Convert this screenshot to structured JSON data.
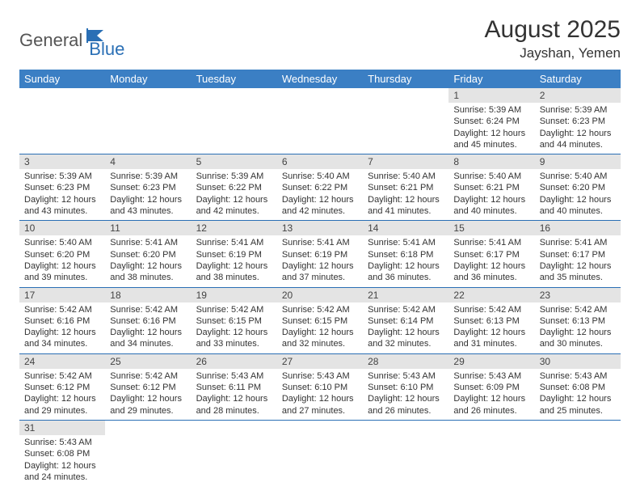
{
  "logo": {
    "general": "General",
    "blue": "Blue"
  },
  "title": "August 2025",
  "location": "Jayshan, Yemen",
  "colors": {
    "header_bg": "#3b7fc4",
    "header_text": "#ffffff",
    "row_divider": "#2a6fb5",
    "daynum_bg": "#e4e4e4",
    "logo_blue": "#2a6fb5",
    "logo_gray": "#555555"
  },
  "weekdays": [
    "Sunday",
    "Monday",
    "Tuesday",
    "Wednesday",
    "Thursday",
    "Friday",
    "Saturday"
  ],
  "weeks": [
    [
      null,
      null,
      null,
      null,
      null,
      {
        "d": "1",
        "sr": "Sunrise: 5:39 AM",
        "ss": "Sunset: 6:24 PM",
        "dl1": "Daylight: 12 hours",
        "dl2": "and 45 minutes."
      },
      {
        "d": "2",
        "sr": "Sunrise: 5:39 AM",
        "ss": "Sunset: 6:23 PM",
        "dl1": "Daylight: 12 hours",
        "dl2": "and 44 minutes."
      }
    ],
    [
      {
        "d": "3",
        "sr": "Sunrise: 5:39 AM",
        "ss": "Sunset: 6:23 PM",
        "dl1": "Daylight: 12 hours",
        "dl2": "and 43 minutes."
      },
      {
        "d": "4",
        "sr": "Sunrise: 5:39 AM",
        "ss": "Sunset: 6:23 PM",
        "dl1": "Daylight: 12 hours",
        "dl2": "and 43 minutes."
      },
      {
        "d": "5",
        "sr": "Sunrise: 5:39 AM",
        "ss": "Sunset: 6:22 PM",
        "dl1": "Daylight: 12 hours",
        "dl2": "and 42 minutes."
      },
      {
        "d": "6",
        "sr": "Sunrise: 5:40 AM",
        "ss": "Sunset: 6:22 PM",
        "dl1": "Daylight: 12 hours",
        "dl2": "and 42 minutes."
      },
      {
        "d": "7",
        "sr": "Sunrise: 5:40 AM",
        "ss": "Sunset: 6:21 PM",
        "dl1": "Daylight: 12 hours",
        "dl2": "and 41 minutes."
      },
      {
        "d": "8",
        "sr": "Sunrise: 5:40 AM",
        "ss": "Sunset: 6:21 PM",
        "dl1": "Daylight: 12 hours",
        "dl2": "and 40 minutes."
      },
      {
        "d": "9",
        "sr": "Sunrise: 5:40 AM",
        "ss": "Sunset: 6:20 PM",
        "dl1": "Daylight: 12 hours",
        "dl2": "and 40 minutes."
      }
    ],
    [
      {
        "d": "10",
        "sr": "Sunrise: 5:40 AM",
        "ss": "Sunset: 6:20 PM",
        "dl1": "Daylight: 12 hours",
        "dl2": "and 39 minutes."
      },
      {
        "d": "11",
        "sr": "Sunrise: 5:41 AM",
        "ss": "Sunset: 6:20 PM",
        "dl1": "Daylight: 12 hours",
        "dl2": "and 38 minutes."
      },
      {
        "d": "12",
        "sr": "Sunrise: 5:41 AM",
        "ss": "Sunset: 6:19 PM",
        "dl1": "Daylight: 12 hours",
        "dl2": "and 38 minutes."
      },
      {
        "d": "13",
        "sr": "Sunrise: 5:41 AM",
        "ss": "Sunset: 6:19 PM",
        "dl1": "Daylight: 12 hours",
        "dl2": "and 37 minutes."
      },
      {
        "d": "14",
        "sr": "Sunrise: 5:41 AM",
        "ss": "Sunset: 6:18 PM",
        "dl1": "Daylight: 12 hours",
        "dl2": "and 36 minutes."
      },
      {
        "d": "15",
        "sr": "Sunrise: 5:41 AM",
        "ss": "Sunset: 6:17 PM",
        "dl1": "Daylight: 12 hours",
        "dl2": "and 36 minutes."
      },
      {
        "d": "16",
        "sr": "Sunrise: 5:41 AM",
        "ss": "Sunset: 6:17 PM",
        "dl1": "Daylight: 12 hours",
        "dl2": "and 35 minutes."
      }
    ],
    [
      {
        "d": "17",
        "sr": "Sunrise: 5:42 AM",
        "ss": "Sunset: 6:16 PM",
        "dl1": "Daylight: 12 hours",
        "dl2": "and 34 minutes."
      },
      {
        "d": "18",
        "sr": "Sunrise: 5:42 AM",
        "ss": "Sunset: 6:16 PM",
        "dl1": "Daylight: 12 hours",
        "dl2": "and 34 minutes."
      },
      {
        "d": "19",
        "sr": "Sunrise: 5:42 AM",
        "ss": "Sunset: 6:15 PM",
        "dl1": "Daylight: 12 hours",
        "dl2": "and 33 minutes."
      },
      {
        "d": "20",
        "sr": "Sunrise: 5:42 AM",
        "ss": "Sunset: 6:15 PM",
        "dl1": "Daylight: 12 hours",
        "dl2": "and 32 minutes."
      },
      {
        "d": "21",
        "sr": "Sunrise: 5:42 AM",
        "ss": "Sunset: 6:14 PM",
        "dl1": "Daylight: 12 hours",
        "dl2": "and 32 minutes."
      },
      {
        "d": "22",
        "sr": "Sunrise: 5:42 AM",
        "ss": "Sunset: 6:13 PM",
        "dl1": "Daylight: 12 hours",
        "dl2": "and 31 minutes."
      },
      {
        "d": "23",
        "sr": "Sunrise: 5:42 AM",
        "ss": "Sunset: 6:13 PM",
        "dl1": "Daylight: 12 hours",
        "dl2": "and 30 minutes."
      }
    ],
    [
      {
        "d": "24",
        "sr": "Sunrise: 5:42 AM",
        "ss": "Sunset: 6:12 PM",
        "dl1": "Daylight: 12 hours",
        "dl2": "and 29 minutes."
      },
      {
        "d": "25",
        "sr": "Sunrise: 5:42 AM",
        "ss": "Sunset: 6:12 PM",
        "dl1": "Daylight: 12 hours",
        "dl2": "and 29 minutes."
      },
      {
        "d": "26",
        "sr": "Sunrise: 5:43 AM",
        "ss": "Sunset: 6:11 PM",
        "dl1": "Daylight: 12 hours",
        "dl2": "and 28 minutes."
      },
      {
        "d": "27",
        "sr": "Sunrise: 5:43 AM",
        "ss": "Sunset: 6:10 PM",
        "dl1": "Daylight: 12 hours",
        "dl2": "and 27 minutes."
      },
      {
        "d": "28",
        "sr": "Sunrise: 5:43 AM",
        "ss": "Sunset: 6:10 PM",
        "dl1": "Daylight: 12 hours",
        "dl2": "and 26 minutes."
      },
      {
        "d": "29",
        "sr": "Sunrise: 5:43 AM",
        "ss": "Sunset: 6:09 PM",
        "dl1": "Daylight: 12 hours",
        "dl2": "and 26 minutes."
      },
      {
        "d": "30",
        "sr": "Sunrise: 5:43 AM",
        "ss": "Sunset: 6:08 PM",
        "dl1": "Daylight: 12 hours",
        "dl2": "and 25 minutes."
      }
    ],
    [
      {
        "d": "31",
        "sr": "Sunrise: 5:43 AM",
        "ss": "Sunset: 6:08 PM",
        "dl1": "Daylight: 12 hours",
        "dl2": "and 24 minutes."
      },
      null,
      null,
      null,
      null,
      null,
      null
    ]
  ]
}
